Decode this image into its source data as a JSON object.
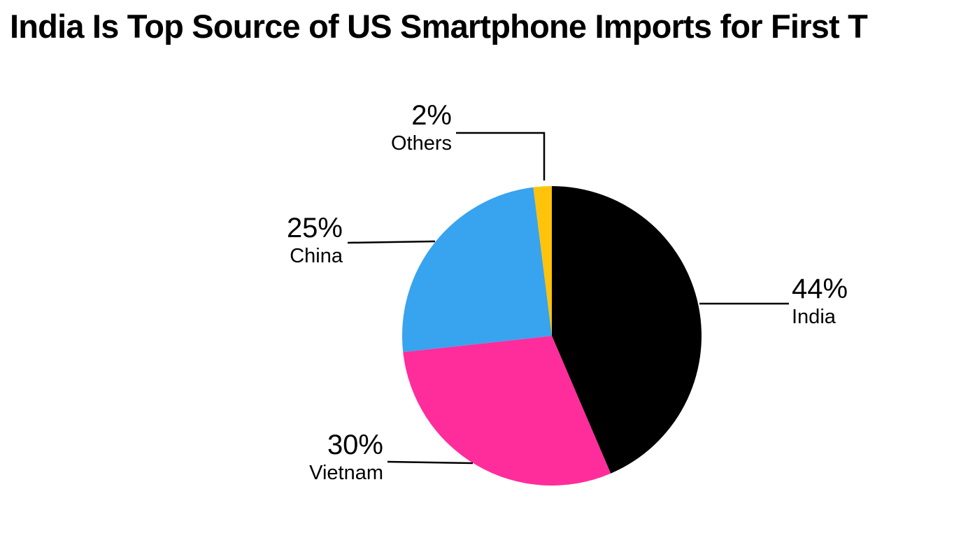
{
  "chart_data": {
    "type": "pie",
    "title": "India Is Top Source of US Smartphone Imports for First T",
    "unit": "%",
    "start_angle_deg": -90,
    "direction": "clockwise",
    "legend_position": "none",
    "label_style": "callout-leader-lines",
    "background_color": "#ffffff",
    "leader_line_color": "#000000",
    "slices": [
      {
        "id": "india",
        "label": "India",
        "value": 44,
        "pct_label": "44%",
        "color": "#000000"
      },
      {
        "id": "vietnam",
        "label": "Vietnam",
        "value": 30,
        "pct_label": "30%",
        "color": "#FF2D9B"
      },
      {
        "id": "china",
        "label": "China",
        "value": 25,
        "pct_label": "25%",
        "color": "#38A3EF"
      },
      {
        "id": "others",
        "label": "Others",
        "value": 2,
        "pct_label": "2%",
        "color": "#FFC30B"
      }
    ]
  }
}
